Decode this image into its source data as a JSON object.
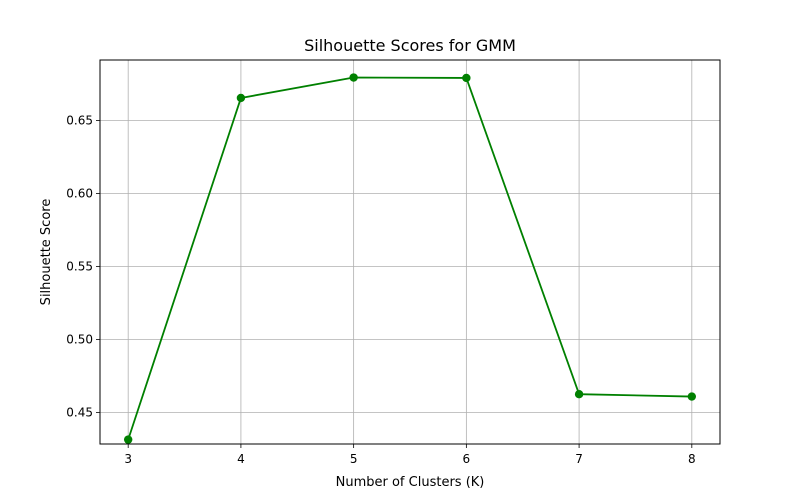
{
  "chart_data": {
    "type": "line",
    "title": "Silhouette Scores for GMM",
    "xlabel": "Number of Clusters (K)",
    "ylabel": "Silhouette Score",
    "x": [
      3,
      4,
      5,
      6,
      7,
      8
    ],
    "xticks": [
      "3",
      "4",
      "5",
      "6",
      "7",
      "8"
    ],
    "yticks": [
      "0.45",
      "0.50",
      "0.55",
      "0.60",
      "0.65"
    ],
    "ytick_values": [
      0.45,
      0.5,
      0.55,
      0.6,
      0.65
    ],
    "xlim": [
      2.75,
      8.25
    ],
    "ylim": [
      0.4285,
      0.6915
    ],
    "grid": true,
    "series": [
      {
        "color": "#008000",
        "marker": "circle",
        "values": [
          0.4315,
          0.6655,
          0.6795,
          0.6792,
          0.4626,
          0.461
        ]
      }
    ]
  }
}
